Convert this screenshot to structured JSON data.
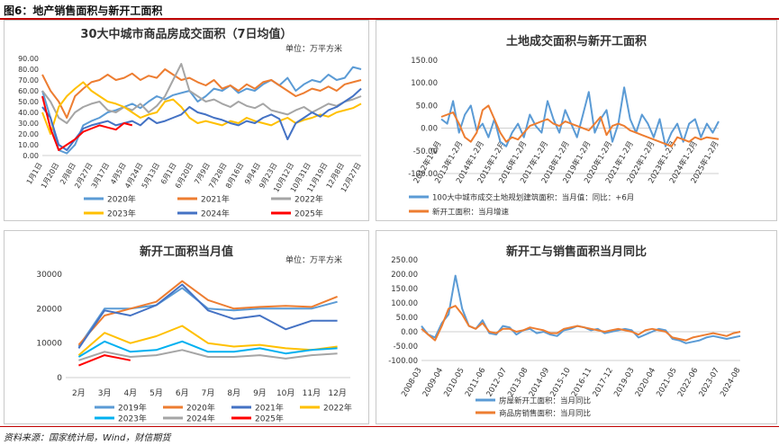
{
  "figure": {
    "title": "图6：地产销售面积与新开工面积",
    "source": "资料来源：国家统计局，Wind，财信期货"
  },
  "chart_data": [
    {
      "id": "sales7d",
      "type": "line",
      "title": "30大中城市商品房成交面积（7日均值）",
      "unit": "单位：万平方米",
      "ylim": [
        0,
        90
      ],
      "yticks": [
        "0.00",
        "10.00",
        "20.00",
        "30.00",
        "40.00",
        "50.00",
        "60.00",
        "70.00",
        "80.00",
        "90.00"
      ],
      "xticklabels": [
        "1月1日",
        "1月20日",
        "2月8日",
        "2月27日",
        "3月17日",
        "4月5日",
        "4月24日",
        "5月13日",
        "6月1日",
        "6月20日",
        "7月9日",
        "7月28日",
        "8月16日",
        "9月4日",
        "9月23日",
        "10月12日",
        "10月31日",
        "11月19日",
        "12月8日",
        "12月27日"
      ],
      "series": [
        {
          "name": "2020年",
          "color": "#5b9bd5",
          "values": [
            60,
            35,
            5,
            2,
            10,
            28,
            32,
            35,
            40,
            42,
            45,
            48,
            44,
            50,
            55,
            52,
            56,
            58,
            60,
            50,
            55,
            62,
            60,
            65,
            58,
            62,
            60,
            66,
            70,
            65,
            72,
            60,
            66,
            70,
            68,
            75,
            70,
            72,
            82,
            80
          ]
        },
        {
          "name": "2021年",
          "color": "#ed7d31",
          "values": [
            75,
            60,
            50,
            35,
            55,
            62,
            68,
            70,
            75,
            70,
            72,
            76,
            70,
            74,
            72,
            80,
            75,
            70,
            72,
            68,
            65,
            70,
            62,
            65,
            60,
            66,
            62,
            68,
            70,
            65,
            60,
            55,
            58,
            62,
            60,
            64,
            60,
            66,
            68,
            70
          ]
        },
        {
          "name": "2022年",
          "color": "#a5a5a5",
          "values": [
            60,
            50,
            35,
            30,
            40,
            45,
            48,
            50,
            42,
            40,
            45,
            42,
            48,
            40,
            46,
            55,
            70,
            85,
            60,
            55,
            50,
            52,
            48,
            45,
            50,
            46,
            44,
            48,
            42,
            40,
            38,
            42,
            45,
            40,
            44,
            48,
            46,
            50,
            52,
            55
          ]
        },
        {
          "name": "2023年",
          "color": "#ffc000",
          "values": [
            40,
            20,
            45,
            55,
            62,
            68,
            60,
            55,
            50,
            48,
            45,
            40,
            35,
            38,
            40,
            50,
            52,
            45,
            35,
            30,
            32,
            30,
            28,
            32,
            30,
            35,
            32,
            30,
            28,
            32,
            35,
            30,
            33,
            35,
            38,
            36,
            40,
            42,
            44,
            48
          ]
        },
        {
          "name": "2024年",
          "color": "#4472c4",
          "values": [
            45,
            35,
            10,
            5,
            15,
            25,
            28,
            30,
            32,
            28,
            30,
            32,
            28,
            35,
            30,
            32,
            35,
            38,
            45,
            40,
            38,
            35,
            33,
            30,
            28,
            32,
            30,
            35,
            38,
            34,
            15,
            30,
            35,
            40,
            36,
            42,
            45,
            50,
            55,
            62
          ]
        },
        {
          "name": "2025年",
          "color": "#ff0000",
          "values": [
            55,
            25,
            5,
            10,
            15,
            22,
            25,
            28,
            26,
            24,
            30,
            28,
            null,
            null,
            null,
            null,
            null,
            null,
            null,
            null,
            null,
            null,
            null,
            null,
            null,
            null,
            null,
            null,
            null,
            null,
            null,
            null,
            null,
            null,
            null,
            null,
            null,
            null,
            null,
            null
          ]
        }
      ]
    },
    {
      "id": "landvsstarts",
      "type": "line",
      "title": "土地成交面积与新开工面积",
      "ylim": [
        -100,
        150
      ],
      "yticks": [
        "-100.00",
        "-50.00",
        "0.00",
        "50.00",
        "100.00",
        "150.00"
      ],
      "xticklabels": [
        "2012年1-2月",
        "2013年1-2月",
        "2014年1-2月",
        "2015年1-2月",
        "2016年1-2月",
        "2017年1-2月",
        "2018年1-2月",
        "2019年1-2月",
        "2020年1-2月",
        "2021年1-2月",
        "2022年1-2月",
        "2023年1-2月",
        "2024年1-2月",
        "2025年1-2月"
      ],
      "series": [
        {
          "name": "100大中城市成交土地规划建筑面积：当月值：同比：+6月",
          "color": "#5b9bd5",
          "values": [
            20,
            10,
            60,
            -10,
            30,
            50,
            -5,
            10,
            -20,
            20,
            -30,
            -40,
            -10,
            10,
            -20,
            30,
            5,
            -10,
            60,
            20,
            -10,
            40,
            10,
            -20,
            30,
            80,
            -10,
            20,
            40,
            -30,
            10,
            90,
            20,
            -10,
            30,
            10,
            -20,
            20,
            -40,
            -10,
            10,
            -30,
            10,
            20,
            -20,
            10,
            -10,
            15
          ]
        },
        {
          "name": "新开工面积：当月增速",
          "color": "#ed7d31",
          "values": [
            25,
            30,
            35,
            10,
            -20,
            -30,
            -10,
            40,
            50,
            20,
            -10,
            -30,
            -20,
            -25,
            -10,
            5,
            10,
            15,
            20,
            10,
            5,
            15,
            10,
            5,
            0,
            -5,
            10,
            25,
            -15,
            5,
            10,
            5,
            -5,
            -10,
            -15,
            -20,
            -25,
            -30,
            -35,
            -40,
            -20,
            -25,
            -30,
            -20,
            -25,
            -20,
            -22,
            -24
          ]
        }
      ]
    },
    {
      "id": "startsmonthly",
      "type": "line",
      "title": "新开工面积当月值",
      "unit": "单位：万平方米",
      "ylim": [
        0,
        30000
      ],
      "yticks": [
        "0",
        "10000",
        "20000",
        "30000"
      ],
      "categories": [
        "2月",
        "3月",
        "4月",
        "5月",
        "6月",
        "7月",
        "8月",
        "9月",
        "10月",
        "11月",
        "12月"
      ],
      "series": [
        {
          "name": "2019年",
          "color": "#5b9bd5",
          "values": [
            9000,
            20000,
            20000,
            21000,
            26000,
            20000,
            19500,
            20000,
            20000,
            20000,
            22000
          ]
        },
        {
          "name": "2020年",
          "color": "#ed7d31",
          "values": [
            9500,
            18000,
            20000,
            22000,
            28000,
            22500,
            20000,
            20500,
            20800,
            20500,
            23500
          ]
        },
        {
          "name": "2021年",
          "color": "#4472c4",
          "values": [
            8500,
            19500,
            18000,
            21000,
            27000,
            19500,
            17000,
            18000,
            14000,
            16500,
            16500
          ]
        },
        {
          "name": "2022年",
          "color": "#ffc000",
          "values": [
            6500,
            13000,
            10000,
            12000,
            15000,
            10000,
            9000,
            9500,
            8500,
            8000,
            9000
          ]
        },
        {
          "name": "2023年",
          "color": "#00b0f0",
          "values": [
            6000,
            10500,
            7500,
            8000,
            10500,
            7500,
            7500,
            8500,
            7000,
            8000,
            8500
          ]
        },
        {
          "name": "2024年",
          "color": "#a5a5a5",
          "values": [
            5000,
            7500,
            6000,
            6500,
            8000,
            6000,
            6000,
            6500,
            5500,
            6500,
            7000
          ]
        },
        {
          "name": "2025年",
          "color": "#ff0000",
          "values": [
            3500,
            6500,
            5000,
            null,
            null,
            null,
            null,
            null,
            null,
            null,
            null
          ]
        }
      ]
    },
    {
      "id": "yoy",
      "type": "line",
      "title": "新开工与销售面积当月同比",
      "ylim": [
        -100,
        250
      ],
      "yticks": [
        "-100.00",
        "-50.00",
        "0.00",
        "50.00",
        "100.00",
        "150.00",
        "200.00",
        "250.00"
      ],
      "xticklabels": [
        "2008-03",
        "2009-04",
        "2010-05",
        "2011-06",
        "2012-07",
        "2013-08",
        "2014-09",
        "2015-10",
        "2016-11",
        "2017-12",
        "2019-03",
        "2020-04",
        "2021-05",
        "2022-06",
        "2023-07",
        "2024-08"
      ],
      "series": [
        {
          "name": "房屋新开工面积：当月同比",
          "color": "#5b9bd5",
          "values": [
            20,
            -10,
            -20,
            30,
            60,
            195,
            80,
            20,
            10,
            40,
            -5,
            -10,
            20,
            15,
            -10,
            5,
            10,
            -5,
            0,
            -10,
            -15,
            5,
            10,
            20,
            15,
            5,
            10,
            -5,
            0,
            5,
            10,
            5,
            -20,
            -10,
            0,
            10,
            5,
            -25,
            -30,
            -40,
            -35,
            -30,
            -20,
            -15,
            -20,
            -25,
            -20,
            -15
          ]
        },
        {
          "name": "商品房销售面积：当月同比",
          "color": "#ed7d31",
          "values": [
            10,
            -10,
            -30,
            20,
            80,
            90,
            60,
            20,
            10,
            30,
            0,
            -5,
            10,
            10,
            0,
            5,
            15,
            10,
            5,
            -5,
            -5,
            10,
            15,
            20,
            15,
            10,
            5,
            0,
            5,
            10,
            5,
            0,
            -10,
            5,
            10,
            5,
            0,
            -20,
            -25,
            -30,
            -20,
            -15,
            -10,
            -5,
            -10,
            -15,
            -5,
            0
          ]
        }
      ]
    }
  ]
}
